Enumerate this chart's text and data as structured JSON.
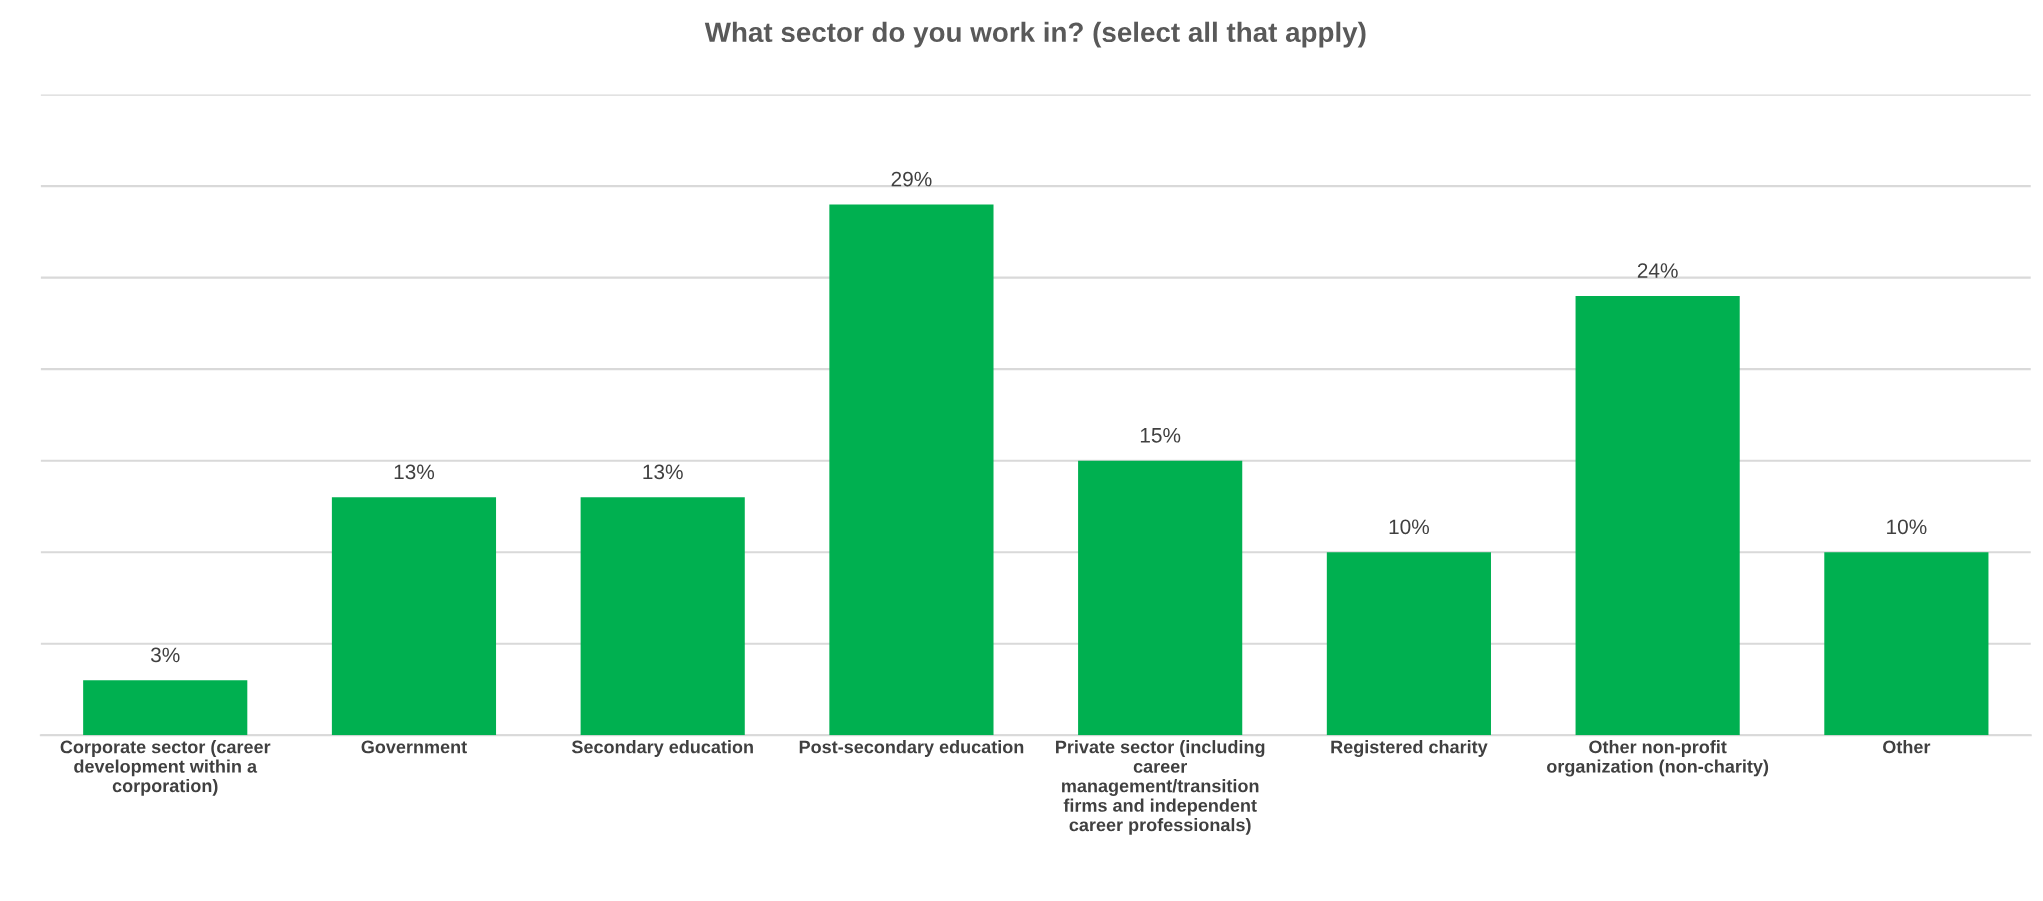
{
  "chart_data": {
    "type": "bar",
    "title": "What sector do you work in? (select all that apply)",
    "categories": [
      "Corporate sector (career development within a corporation)",
      "Government",
      "Secondary education",
      "Post-secondary education",
      "Private sector (including career management/transition firms and independent career professionals)",
      "Registered charity",
      "Other non-profit organization (non-charity)",
      "Other"
    ],
    "values": [
      3,
      13,
      13,
      29,
      15,
      10,
      24,
      10
    ],
    "color": "#00b050",
    "value_labels": [
      "3%",
      "13%",
      "13%",
      "29%",
      "15%",
      "10%",
      "24%",
      "10%"
    ],
    "ylim": [
      0,
      35
    ],
    "yticks": [
      {
        "value": 0,
        "label": null
      },
      {
        "value": 5,
        "label": null
      },
      {
        "value": 10,
        "label": null
      },
      {
        "value": 15,
        "label": null
      },
      {
        "value": 20,
        "label": null
      },
      {
        "value": 25,
        "label": null
      },
      {
        "value": 30,
        "label": null
      },
      {
        "value": 35,
        "label": null
      }
    ],
    "grid": "y",
    "tick_labels": "x"
  }
}
